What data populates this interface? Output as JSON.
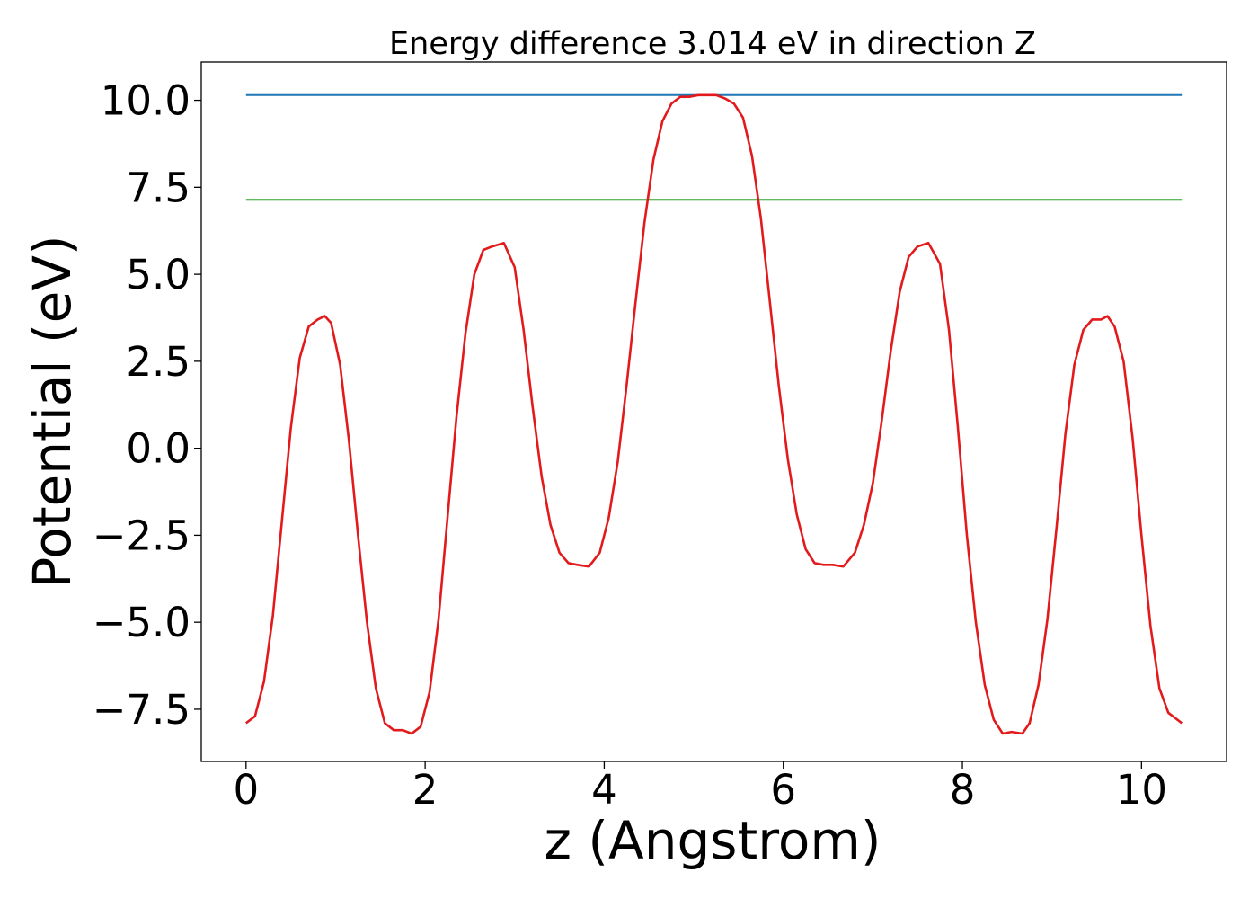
{
  "chart_data": {
    "type": "line",
    "title": "Energy difference 3.014 eV in direction Z",
    "xlabel": "z (Angstrom)",
    "ylabel": "Potential (eV)",
    "xlim": [
      -0.5,
      10.95
    ],
    "ylim": [
      -9.0,
      11.1
    ],
    "x_ticks": [
      0,
      2,
      4,
      6,
      8,
      10
    ],
    "x_tick_labels": [
      "0",
      "2",
      "4",
      "6",
      "8",
      "10"
    ],
    "y_ticks": [
      -7.5,
      -5.0,
      -2.5,
      0.0,
      2.5,
      5.0,
      7.5,
      10.0
    ],
    "y_tick_labels": [
      "−7.5",
      "−5.0",
      "−2.5",
      "0.0",
      "2.5",
      "5.0",
      "7.5",
      "10.0"
    ],
    "grid": false,
    "series": [
      {
        "color": "#1f77b4",
        "x": [
          0,
          10.45
        ],
        "y": [
          10.15,
          10.15
        ]
      },
      {
        "color": "#2ca02c",
        "x": [
          0,
          10.45
        ],
        "y": [
          7.14,
          7.14
        ]
      },
      {
        "color": "#e31a1c",
        "x": [
          0.0,
          0.1,
          0.2,
          0.3,
          0.4,
          0.5,
          0.6,
          0.7,
          0.8,
          0.88,
          0.95,
          1.05,
          1.15,
          1.25,
          1.35,
          1.45,
          1.55,
          1.65,
          1.75,
          1.85,
          1.95,
          2.05,
          2.15,
          2.25,
          2.35,
          2.45,
          2.55,
          2.65,
          2.75,
          2.88,
          3.0,
          3.1,
          3.2,
          3.3,
          3.4,
          3.5,
          3.6,
          3.7,
          3.83,
          3.95,
          4.05,
          4.15,
          4.25,
          4.35,
          4.45,
          4.55,
          4.65,
          4.75,
          4.85,
          4.95,
          5.05,
          5.15,
          5.25,
          5.35,
          5.45,
          5.55,
          5.65,
          5.75,
          5.85,
          5.95,
          6.05,
          6.15,
          6.25,
          6.35,
          6.45,
          6.55,
          6.67,
          6.8,
          6.9,
          7.0,
          7.1,
          7.2,
          7.3,
          7.4,
          7.5,
          7.62,
          7.75,
          7.85,
          7.95,
          8.05,
          8.15,
          8.25,
          8.35,
          8.45,
          8.55,
          8.67,
          8.75,
          8.85,
          8.95,
          9.05,
          9.15,
          9.25,
          9.35,
          9.45,
          9.55,
          9.62,
          9.7,
          9.8,
          9.9,
          10.0,
          10.1,
          10.2,
          10.3,
          10.45
        ],
        "y": [
          -7.9,
          -7.7,
          -6.7,
          -4.8,
          -2.1,
          0.6,
          2.6,
          3.5,
          3.7,
          3.8,
          3.6,
          2.4,
          0.2,
          -2.5,
          -5.0,
          -6.9,
          -7.9,
          -8.1,
          -8.1,
          -8.2,
          -8.0,
          -7.0,
          -4.9,
          -2.0,
          0.9,
          3.3,
          5.0,
          5.7,
          5.8,
          5.9,
          5.2,
          3.4,
          1.2,
          -0.8,
          -2.2,
          -3.0,
          -3.3,
          -3.35,
          -3.4,
          -3.0,
          -2.0,
          -0.4,
          1.8,
          4.2,
          6.5,
          8.3,
          9.4,
          9.9,
          10.1,
          10.1,
          10.15,
          10.15,
          10.15,
          10.05,
          9.9,
          9.5,
          8.4,
          6.6,
          4.2,
          1.8,
          -0.3,
          -1.9,
          -2.9,
          -3.3,
          -3.35,
          -3.35,
          -3.4,
          -3.0,
          -2.2,
          -1.0,
          0.8,
          2.8,
          4.5,
          5.5,
          5.8,
          5.9,
          5.3,
          3.4,
          0.6,
          -2.5,
          -5.0,
          -6.8,
          -7.8,
          -8.2,
          -8.15,
          -8.2,
          -7.9,
          -6.8,
          -4.9,
          -2.3,
          0.4,
          2.4,
          3.4,
          3.7,
          3.7,
          3.8,
          3.5,
          2.5,
          0.3,
          -2.5,
          -5.1,
          -6.9,
          -7.6,
          -7.9
        ]
      }
    ]
  }
}
